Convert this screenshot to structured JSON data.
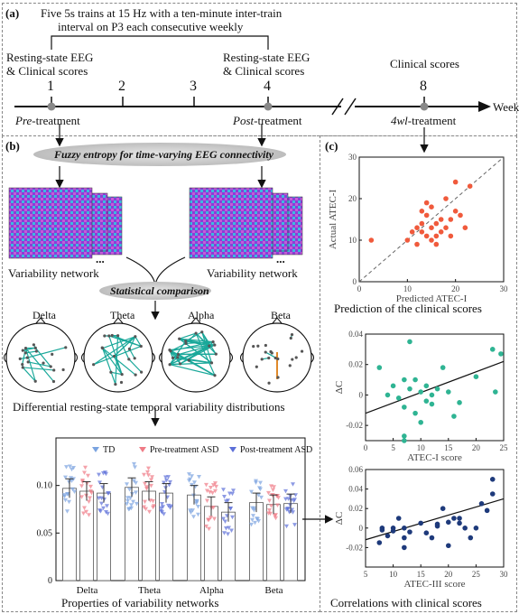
{
  "panel_a": {
    "label": "(a)",
    "protocol_line1": "Five 5s trains at 15 Hz with a ten-minute inter-train",
    "protocol_line2": "interval on P3 each consecutive weekly",
    "rest_eeg_1": "Resting-state EEG",
    "clin_1": "& Clinical scores",
    "rest_eeg_2": "Resting-state EEG",
    "clin_2": "& Clinical scores",
    "clin_3": "Clinical scores",
    "ticks": [
      "1",
      "2",
      "3",
      "4",
      "8"
    ],
    "week_label": "Week",
    "pre_italic": "Pre",
    "pre_rest": "-treatment",
    "post_italic": "Post",
    "post_rest": "-treatment",
    "fourwl_italic": "4wl",
    "fourwl_rest": "-treatment"
  },
  "panel_b": {
    "label": "(b)",
    "fuzzy_title": "Fuzzy entropy for time-varying EEG connectivity",
    "variability_network_left": "Variability network",
    "variability_network_right": "Variability network",
    "ellipsis_left": "...",
    "ellipsis_right": "...",
    "stat_comparison": "Statistical comparison",
    "bands": [
      "Delta",
      "Theta",
      "Alpha",
      "Beta"
    ],
    "differential_caption": "Differential resting-state temporal variability distributions",
    "properties_caption": "Properties of variability networks"
  },
  "panel_c": {
    "label": "(c)",
    "prediction_caption": "Prediction of the clinical scores",
    "correlation_caption": "Correlations with clinical scores"
  },
  "chart_data": [
    {
      "type": "scatter",
      "name": "prediction",
      "xlabel": "Predicted ATEC-I",
      "ylabel": "Actual ATEC-I",
      "xlim": [
        0,
        30
      ],
      "ylim": [
        0,
        30
      ],
      "xticks": [
        "0",
        "10",
        "20",
        "30"
      ],
      "yticks": [
        "0",
        "10",
        "20",
        "30"
      ],
      "color": "#f05a3c",
      "points": [
        [
          2.5,
          10
        ],
        [
          10,
          10
        ],
        [
          11,
          12
        ],
        [
          12,
          13
        ],
        [
          12,
          9
        ],
        [
          13,
          14
        ],
        [
          13,
          17
        ],
        [
          14,
          16
        ],
        [
          14,
          11
        ],
        [
          15,
          10
        ],
        [
          15,
          13
        ],
        [
          15,
          18
        ],
        [
          16,
          11
        ],
        [
          16,
          14
        ],
        [
          16,
          9
        ],
        [
          17,
          12
        ],
        [
          17,
          15
        ],
        [
          18,
          13
        ],
        [
          18,
          20
        ],
        [
          19,
          11
        ],
        [
          19,
          15
        ],
        [
          20,
          17
        ],
        [
          20,
          24
        ],
        [
          21,
          16
        ],
        [
          22,
          13
        ],
        [
          23,
          23
        ],
        [
          13,
          12
        ],
        [
          14,
          19
        ]
      ]
    },
    {
      "type": "scatter",
      "name": "atec1",
      "xlabel": "ATEC-I score",
      "ylabel": "ΔC",
      "xlim": [
        0,
        25
      ],
      "ylim": [
        -0.03,
        0.04
      ],
      "xticks": [
        "0",
        "5",
        "10",
        "15",
        "20",
        "25"
      ],
      "yticks": [
        "-0.02",
        "0",
        "0.02",
        "0.04"
      ],
      "color": "#2fb493",
      "points": [
        [
          2.5,
          0.018
        ],
        [
          4,
          0.0
        ],
        [
          5,
          0.006
        ],
        [
          6,
          -0.002
        ],
        [
          7,
          0.01
        ],
        [
          7,
          -0.008
        ],
        [
          8,
          0.004
        ],
        [
          8,
          0.035
        ],
        [
          9,
          0.01
        ],
        [
          9,
          -0.012
        ],
        [
          10,
          0.002
        ],
        [
          10,
          -0.018
        ],
        [
          11,
          0.006
        ],
        [
          11,
          -0.004
        ],
        [
          12,
          0.0
        ],
        [
          12,
          -0.006
        ],
        [
          13,
          0.004
        ],
        [
          14,
          0.018
        ],
        [
          15,
          0.002
        ],
        [
          17,
          -0.005
        ],
        [
          20,
          0.012
        ],
        [
          23,
          0.03
        ],
        [
          23.5,
          0.002
        ],
        [
          24.5,
          0.027
        ],
        [
          7,
          -0.027
        ],
        [
          7,
          -0.03
        ],
        [
          16,
          -0.014
        ]
      ],
      "fit": [
        [
          0,
          -0.012
        ],
        [
          25,
          0.022
        ]
      ]
    },
    {
      "type": "scatter",
      "name": "atec3",
      "xlabel": "ATEC-III score",
      "ylabel": "ΔC",
      "xlim": [
        5,
        30
      ],
      "ylim": [
        -0.04,
        0.06
      ],
      "xticks": [
        "5",
        "10",
        "15",
        "20",
        "25",
        "30"
      ],
      "yticks": [
        "-0.02",
        "0",
        "0.02",
        "0.04",
        "0.06"
      ],
      "color": "#1e3a7b",
      "points": [
        [
          7.5,
          -0.015
        ],
        [
          8,
          -0.002
        ],
        [
          8,
          0.0
        ],
        [
          9,
          -0.008
        ],
        [
          10,
          0.0
        ],
        [
          10,
          -0.003
        ],
        [
          11,
          0.01
        ],
        [
          12,
          -0.02
        ],
        [
          12,
          0.0
        ],
        [
          12,
          -0.01
        ],
        [
          13,
          -0.004
        ],
        [
          15,
          0.005
        ],
        [
          16,
          -0.005
        ],
        [
          17,
          -0.01
        ],
        [
          18,
          0.002
        ],
        [
          19,
          0.02
        ],
        [
          20,
          -0.018
        ],
        [
          20,
          0.006
        ],
        [
          21,
          0.01
        ],
        [
          22,
          0.01
        ],
        [
          22,
          0.005
        ],
        [
          23,
          0.0
        ],
        [
          24,
          -0.01
        ],
        [
          25,
          0.0
        ],
        [
          26,
          0.025
        ],
        [
          27,
          0.018
        ],
        [
          28,
          0.035
        ],
        [
          28,
          0.05
        ],
        [
          18,
          0.004
        ]
      ],
      "fit": [
        [
          5,
          -0.012
        ],
        [
          30,
          0.03
        ]
      ]
    },
    {
      "type": "bar",
      "name": "properties",
      "categories": [
        "Delta",
        "Theta",
        "Alpha",
        "Beta"
      ],
      "ylim": [
        0,
        0.15
      ],
      "yticks": [
        "0",
        "0.05",
        "0.10"
      ],
      "series": [
        {
          "name": "TD",
          "color": "#7aa3e0",
          "values": [
            0.097,
            0.098,
            0.09,
            0.082
          ]
        },
        {
          "name": "Pre-treatment ASD",
          "color": "#ef7b86",
          "values": [
            0.094,
            0.094,
            0.078,
            0.08
          ]
        },
        {
          "name": "Post-treatment ASD",
          "color": "#5c6fd8",
          "values": [
            0.092,
            0.092,
            0.072,
            0.081
          ]
        }
      ]
    }
  ]
}
